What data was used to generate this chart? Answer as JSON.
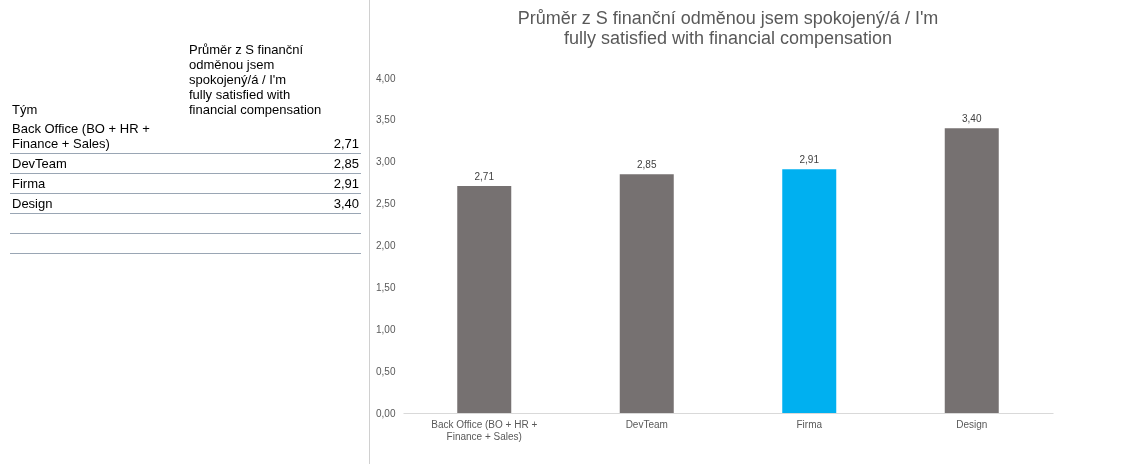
{
  "chart_data": [
    {
      "type": "other",
      "annotations": [
        "Tým",
        "Průměr z S finanční odměnou jsem spokojený/á / I'm fully satisfied with financial compensation",
        "Back Office (BO + HR + Finance + Sales)",
        "2,71",
        "DevTeam",
        "2,85",
        "Firma",
        "2,91",
        "Design",
        "3,40"
      ]
    },
    {
      "type": "bar",
      "title": "Průměr z S finanční odměnou jsem spokojený/á / I'm fully satisfied with financial compensation",
      "categories": [
        "Back Office (BO + HR + Finance + Sales)",
        "DevTeam",
        "Firma",
        "Design"
      ],
      "values": [
        2.71,
        2.85,
        2.91,
        3.4
      ],
      "colors": [
        "#767171",
        "#767171",
        "#00b0f0",
        "#767171"
      ],
      "value_labels": [
        "2,71",
        "2,85",
        "2,91",
        "3,40"
      ],
      "ylim": [
        0,
        4
      ],
      "yticks": [
        {
          "value": 0,
          "label": "0,00"
        },
        {
          "value": 0.5,
          "label": "0,50"
        },
        {
          "value": 1,
          "label": "1,00"
        },
        {
          "value": 1.5,
          "label": "1,50"
        },
        {
          "value": 2,
          "label": "2,00"
        },
        {
          "value": 2.5,
          "label": "2,50"
        },
        {
          "value": 3,
          "label": "3,00"
        },
        {
          "value": 3.5,
          "label": "3,50"
        },
        {
          "value": 4,
          "label": "4,00"
        }
      ],
      "grid": false,
      "legend": false
    }
  ]
}
